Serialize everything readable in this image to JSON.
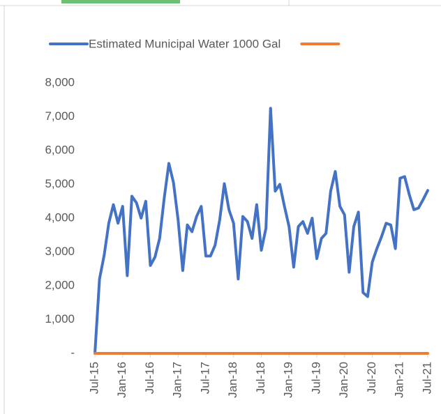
{
  "chart_data": {
    "type": "line",
    "categories": [
      "Jul-15",
      null,
      null,
      null,
      null,
      null,
      "Jan-16",
      null,
      null,
      null,
      null,
      null,
      "Jul-16",
      null,
      null,
      null,
      null,
      null,
      "Jan-17",
      null,
      null,
      null,
      null,
      null,
      "Jul-17",
      null,
      null,
      null,
      null,
      null,
      "Jan-18",
      null,
      null,
      null,
      null,
      null,
      "Jul-18",
      null,
      null,
      null,
      null,
      null,
      "Jan-19",
      null,
      null,
      null,
      null,
      null,
      "Jul-19",
      null,
      null,
      null,
      null,
      null,
      "Jan-20",
      null,
      null,
      null,
      null,
      null,
      "Jul-20",
      null,
      null,
      null,
      null,
      null,
      "Jan-21",
      null,
      null,
      null,
      null,
      null,
      "Jul-21"
    ],
    "series": [
      {
        "name": "Estimated Municipal Water 1000 Gal",
        "color": "#4472c4",
        "values": [
          0,
          2200,
          2900,
          3850,
          4400,
          3850,
          4350,
          2300,
          4650,
          4450,
          4000,
          4500,
          2600,
          2850,
          3400,
          4600,
          5620,
          5050,
          3950,
          2450,
          3800,
          3600,
          4050,
          4350,
          2880,
          2880,
          3200,
          3950,
          5020,
          4250,
          3850,
          2200,
          4050,
          3900,
          3400,
          4400,
          3050,
          3700,
          7250,
          4800,
          5000,
          4350,
          3750,
          2550,
          3750,
          3900,
          3550,
          4000,
          2800,
          3400,
          3550,
          4800,
          5380,
          4350,
          4100,
          2400,
          3750,
          4180,
          1800,
          1680,
          2700,
          3100,
          3450,
          3850,
          3800,
          3100,
          5180,
          5230,
          4700,
          4250,
          4300,
          4550,
          4820
        ]
      },
      {
        "color": "#ed7d31",
        "values": [
          0,
          0,
          0,
          0,
          0,
          0,
          0,
          0,
          0,
          0,
          0,
          0,
          0,
          0,
          0,
          0,
          0,
          0,
          0,
          0,
          0,
          0,
          0,
          0,
          0,
          0,
          0,
          0,
          0,
          0,
          0,
          0,
          0,
          0,
          0,
          0,
          0,
          0,
          0,
          0,
          0,
          0,
          0,
          0,
          0,
          0,
          0,
          0,
          0,
          0,
          0,
          0,
          0,
          0,
          0,
          0,
          0,
          0,
          0,
          0,
          0,
          0,
          0,
          0,
          0,
          0,
          0,
          0,
          0,
          0,
          0,
          0,
          0
        ]
      }
    ],
    "ylim": [
      0,
      8000
    ],
    "yticks": [
      {
        "value": 0,
        "label": "-"
      },
      {
        "value": 1000,
        "label": "1,000"
      },
      {
        "value": 2000,
        "label": "2,000"
      },
      {
        "value": 3000,
        "label": "3,000"
      },
      {
        "value": 4000,
        "label": "4,000"
      },
      {
        "value": 5000,
        "label": "5,000"
      },
      {
        "value": 6000,
        "label": "6,000"
      },
      {
        "value": 7000,
        "label": "7,000"
      },
      {
        "value": 8000,
        "label": "8,000"
      }
    ],
    "legend": "top"
  }
}
